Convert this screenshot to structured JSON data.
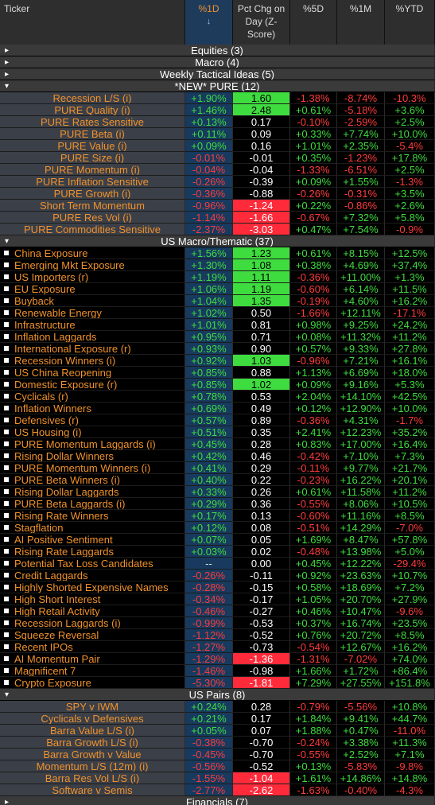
{
  "header": {
    "ticker": "Ticker",
    "d1": "%1D",
    "sort": "↓",
    "z": "Pct Chg on Day (Z-Score)",
    "d5": "%5D",
    "m1": "%1M",
    "ytd": "%YTD"
  },
  "groups": [
    {
      "title": "Equities (3)",
      "expanded": false,
      "layout": "centered",
      "rows": []
    },
    {
      "title": "Macro (4)",
      "expanded": false,
      "layout": "centered",
      "rows": []
    },
    {
      "title": "Weekly Tactical Ideas (5)",
      "expanded": false,
      "layout": "centered",
      "rows": []
    },
    {
      "title": "*NEW* PURE (12)",
      "expanded": true,
      "layout": "centered",
      "rows": [
        [
          "Recession L/S (i)",
          "+1.90%",
          "1.60",
          "-1.38%",
          "-8.74%",
          "-10.3%"
        ],
        [
          "PURE Quality (i)",
          "+1.46%",
          "2.48",
          "+0.61%",
          "-5.18%",
          "+3.6%"
        ],
        [
          "PURE Rates Sensitive",
          "+0.13%",
          "0.17",
          "-0.10%",
          "-2.59%",
          "+2.5%"
        ],
        [
          "PURE Beta (i)",
          "+0.11%",
          "0.09",
          "+0.33%",
          "+7.74%",
          "+10.0%"
        ],
        [
          "PURE Value (i)",
          "+0.09%",
          "0.16",
          "+1.01%",
          "+2.35%",
          "-5.4%"
        ],
        [
          "PURE Size (i)",
          "-0.01%",
          "-0.01",
          "+0.35%",
          "-1.23%",
          "+17.8%"
        ],
        [
          "PURE Momentum (i)",
          "-0.04%",
          "-0.04",
          "-1.33%",
          "-6.51%",
          "+2.5%"
        ],
        [
          "PURE Inflation Sensitive",
          "-0.26%",
          "-0.39",
          "+0.09%",
          "+1.55%",
          "-1.3%"
        ],
        [
          "PURE Growth (i)",
          "-0.36%",
          "-0.88",
          "-0.26%",
          "-0.31%",
          "+3.5%"
        ],
        [
          "Short Term Momentum",
          "-0.96%",
          "-1.24",
          "+0.22%",
          "-0.86%",
          "+2.6%"
        ],
        [
          "PURE Res Vol (i)",
          "-1.14%",
          "-1.66",
          "-0.67%",
          "+7.32%",
          "+5.8%"
        ],
        [
          "PURE Commodities Sensitive",
          "-2.37%",
          "-3.03",
          "+0.47%",
          "+7.54%",
          "-0.9%"
        ]
      ]
    },
    {
      "title": "US Macro/Thematic (37)",
      "expanded": true,
      "layout": "list",
      "rows": [
        [
          "China Exposure",
          "+1.56%",
          "1.23",
          "+0.61%",
          "+8.15%",
          "+12.5%"
        ],
        [
          "Emerging Mkt Exposure",
          "+1.30%",
          "1.08",
          "+0.38%",
          "+4.69%",
          "+37.4%"
        ],
        [
          "US Importers (r)",
          "+1.19%",
          "1.11",
          "-0.36%",
          "+11.00%",
          "+1.3%"
        ],
        [
          "EU Exposure",
          "+1.06%",
          "1.19",
          "-0.60%",
          "+6.14%",
          "+11.5%"
        ],
        [
          "Buyback",
          "+1.04%",
          "1.35",
          "-0.19%",
          "+4.60%",
          "+16.2%"
        ],
        [
          "Renewable Energy",
          "+1.02%",
          "0.50",
          "-1.66%",
          "+12.11%",
          "-17.1%"
        ],
        [
          "Infrastructure",
          "+1.01%",
          "0.81",
          "+0.98%",
          "+9.25%",
          "+24.2%"
        ],
        [
          "Inflation Laggards",
          "+0.95%",
          "0.71",
          "+0.08%",
          "+11.32%",
          "+11.2%"
        ],
        [
          "International Exposure (r)",
          "+0.93%",
          "0.90",
          "+0.57%",
          "+9.33%",
          "+27.8%"
        ],
        [
          "Recession Winners (i)",
          "+0.92%",
          "1.03",
          "-0.96%",
          "+7.21%",
          "+16.1%"
        ],
        [
          "US China Reopening",
          "+0.85%",
          "0.88",
          "+1.13%",
          "+6.69%",
          "+18.0%"
        ],
        [
          "Domestic Exposure (r)",
          "+0.85%",
          "1.02",
          "+0.09%",
          "+9.16%",
          "+5.3%"
        ],
        [
          "Cyclicals (r)",
          "+0.78%",
          "0.53",
          "+2.04%",
          "+14.10%",
          "+42.5%"
        ],
        [
          "Inflation Winners",
          "+0.69%",
          "0.49",
          "+0.12%",
          "+12.90%",
          "+10.0%"
        ],
        [
          "Defensives (r)",
          "+0.57%",
          "0.89",
          "-0.36%",
          "+4.31%",
          "-1.7%"
        ],
        [
          "US Housing (i)",
          "+0.51%",
          "0.35",
          "+2.41%",
          "+12.23%",
          "+35.2%"
        ],
        [
          "PURE Momentum Laggards (i)",
          "+0.45%",
          "0.28",
          "+0.83%",
          "+17.00%",
          "+16.4%"
        ],
        [
          "Rising Dollar Winners",
          "+0.42%",
          "0.46",
          "-0.42%",
          "+7.10%",
          "+7.3%"
        ],
        [
          "PURE Momentum Winners (i)",
          "+0.41%",
          "0.29",
          "-0.11%",
          "+9.77%",
          "+21.7%"
        ],
        [
          "PURE Beta Winners (i)",
          "+0.40%",
          "0.22",
          "-0.23%",
          "+16.22%",
          "+20.1%"
        ],
        [
          "Rising Dollar Laggards",
          "+0.33%",
          "0.26",
          "+0.61%",
          "+11.58%",
          "+11.2%"
        ],
        [
          "PURE Beta Laggards (i)",
          "+0.29%",
          "0.36",
          "-0.55%",
          "+8.06%",
          "+10.5%"
        ],
        [
          "Rising Rate Winners",
          "+0.17%",
          "0.13",
          "-0.60%",
          "+11.16%",
          "+8.5%"
        ],
        [
          "Stagflation",
          "+0.12%",
          "0.08",
          "-0.51%",
          "+14.29%",
          "-7.0%"
        ],
        [
          "AI Positive Sentiment",
          "+0.07%",
          "0.05",
          "+1.69%",
          "+8.47%",
          "+57.8%"
        ],
        [
          "Rising Rate Laggards",
          "+0.03%",
          "0.02",
          "-0.48%",
          "+13.98%",
          "+5.0%"
        ],
        [
          "Potential Tax Loss Candidates",
          "--",
          "0.00",
          "+0.45%",
          "+12.22%",
          "-29.4%"
        ],
        [
          "Credit Laggards",
          "-0.26%",
          "-0.11",
          "+0.92%",
          "+23.63%",
          "+10.7%"
        ],
        [
          "Highly Shorted Expensive Names",
          "-0.28%",
          "-0.15",
          "+0.58%",
          "+18.69%",
          "+7.2%"
        ],
        [
          "High Short Interest",
          "-0.34%",
          "-0.17",
          "+1.05%",
          "+20.70%",
          "+27.9%"
        ],
        [
          "High Retail Activity",
          "-0.46%",
          "-0.27",
          "+0.46%",
          "+10.47%",
          "-9.6%"
        ],
        [
          "Recession Laggards (i)",
          "-0.99%",
          "-0.53",
          "+0.37%",
          "+16.74%",
          "+23.5%"
        ],
        [
          "Squeeze Reversal",
          "-1.12%",
          "-0.52",
          "+0.76%",
          "+20.72%",
          "+8.5%"
        ],
        [
          "Recent IPOs",
          "-1.27%",
          "-0.73",
          "-0.54%",
          "+12.67%",
          "+16.2%"
        ],
        [
          "AI Momentum Pair",
          "-1.29%",
          "-1.36",
          "-1.31%",
          "-7.02%",
          "+74.0%"
        ],
        [
          "Magnificent 7",
          "-1.46%",
          "-0.98",
          "+1.66%",
          "+1.72%",
          "+86.4%"
        ],
        [
          "Crypto Exposure",
          "-5.30%",
          "-1.81",
          "+7.29%",
          "+27.55%",
          "+151.8%"
        ]
      ]
    },
    {
      "title": "US Pairs (8)",
      "expanded": true,
      "layout": "centered",
      "rows": [
        [
          "SPY v IWM",
          "+0.24%",
          "0.28",
          "-0.79%",
          "-5.56%",
          "+10.8%"
        ],
        [
          "Cyclicals v Defensives",
          "+0.21%",
          "0.17",
          "+1.84%",
          "+9.41%",
          "+44.7%"
        ],
        [
          "Barra Value L/S (i)",
          "+0.05%",
          "0.07",
          "+1.88%",
          "+0.47%",
          "-11.0%"
        ],
        [
          "Barra Growth L/S (i)",
          "-0.38%",
          "-0.70",
          "-0.24%",
          "+3.38%",
          "+11.3%"
        ],
        [
          "Barra Growth v Value",
          "-0.45%",
          "-0.70",
          "-0.55%",
          "+2.52%",
          "+7.1%"
        ],
        [
          "Momentum L/S (12m) (i)",
          "-0.56%",
          "-0.52",
          "+0.13%",
          "-5.83%",
          "-9.8%"
        ],
        [
          "Barra Res Vol L/S (i)",
          "-1.55%",
          "-1.04",
          "+1.61%",
          "+14.86%",
          "+14.8%"
        ],
        [
          "Software v Semis",
          "-2.77%",
          "-2.62",
          "-1.63%",
          "-0.40%",
          "-4.3%"
        ]
      ]
    },
    {
      "title": "Financials (7)",
      "expanded": false,
      "layout": "centered",
      "rows": []
    }
  ]
}
